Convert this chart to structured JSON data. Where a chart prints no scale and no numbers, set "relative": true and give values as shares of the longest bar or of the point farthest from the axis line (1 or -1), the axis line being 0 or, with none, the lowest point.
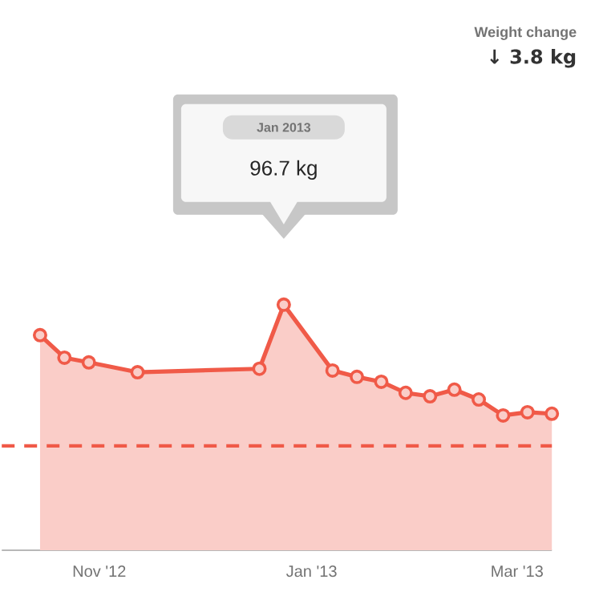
{
  "chart_data": {
    "type": "area",
    "relative": true,
    "color": "#f05a48",
    "marker": "circle",
    "x": [
      "2012-10-15",
      "2012-10-22",
      "2012-10-29",
      "2012-11-12",
      "2012-12-17",
      "2012-12-24",
      "2013-01-07",
      "2013-01-14",
      "2013-01-21",
      "2013-01-28",
      "2013-02-04",
      "2013-02-11",
      "2013-02-18",
      "2013-02-25",
      "2013-03-04",
      "2013-03-11"
    ],
    "values": [
      0.876,
      0.784,
      0.765,
      0.725,
      0.739,
      1,
      0.732,
      0.706,
      0.686,
      0.641,
      0.627,
      0.654,
      0.614,
      0.549,
      0.562,
      0.556
    ],
    "xlim": [
      "2012-10-04",
      "2013-03-11"
    ],
    "xticks": [
      {
        "value": "2012-11-01",
        "label": "Nov '12"
      },
      {
        "value": "2013-01-01",
        "label": "Jan '13"
      },
      {
        "value": "2013-03-01",
        "label": "Mar '13"
      }
    ],
    "ref_lines": [
      {
        "axis": "y",
        "value": 0.425,
        "color": "#f05a48",
        "line_style": "dashed"
      }
    ],
    "annotations": [
      "Jan 2013",
      "96.7 kg",
      "Weight change",
      "↓ 3.8 kg"
    ]
  }
}
